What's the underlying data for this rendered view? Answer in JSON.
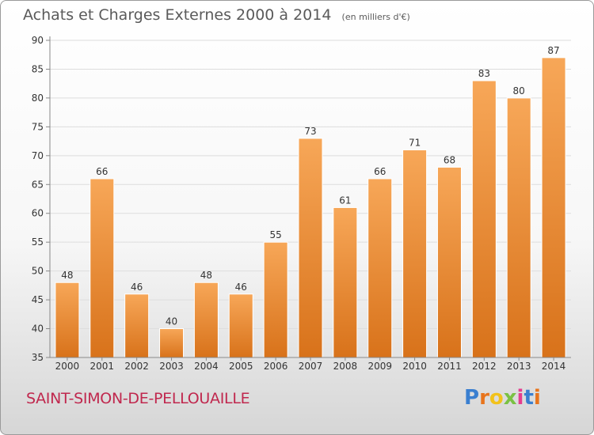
{
  "header": {
    "title": "Achats et Charges Externes 2000 à 2014",
    "subtitle": "(en milliers d'€)"
  },
  "footer": {
    "commune": "SAINT-SIMON-DE-PELLOUAILLE",
    "brand": "Proxiti",
    "brand_colors": [
      "#3a7fd0",
      "#e8741c",
      "#f2c21b",
      "#7ac143",
      "#e53d8f",
      "#3a7fd0",
      "#e8741c"
    ]
  },
  "chart_data": {
    "type": "bar",
    "title": "Achats et Charges Externes 2000 à 2014",
    "subtitle": "(en milliers d'€)",
    "categories": [
      "2000",
      "2001",
      "2002",
      "2003",
      "2004",
      "2005",
      "2006",
      "2007",
      "2008",
      "2009",
      "2010",
      "2011",
      "2012",
      "2013",
      "2014"
    ],
    "values": [
      48,
      66,
      46,
      40,
      48,
      46,
      55,
      73,
      61,
      66,
      71,
      68,
      83,
      80,
      87
    ],
    "ylim": [
      35,
      90
    ],
    "yticks": [
      35,
      40,
      45,
      50,
      55,
      60,
      65,
      70,
      75,
      80,
      85,
      90
    ],
    "grid": true,
    "colors": {
      "bar_top": "#f7a758",
      "bar_bottom": "#d8721a",
      "grid": "#dddddd",
      "axis": "#888888",
      "text": "#333333"
    }
  }
}
